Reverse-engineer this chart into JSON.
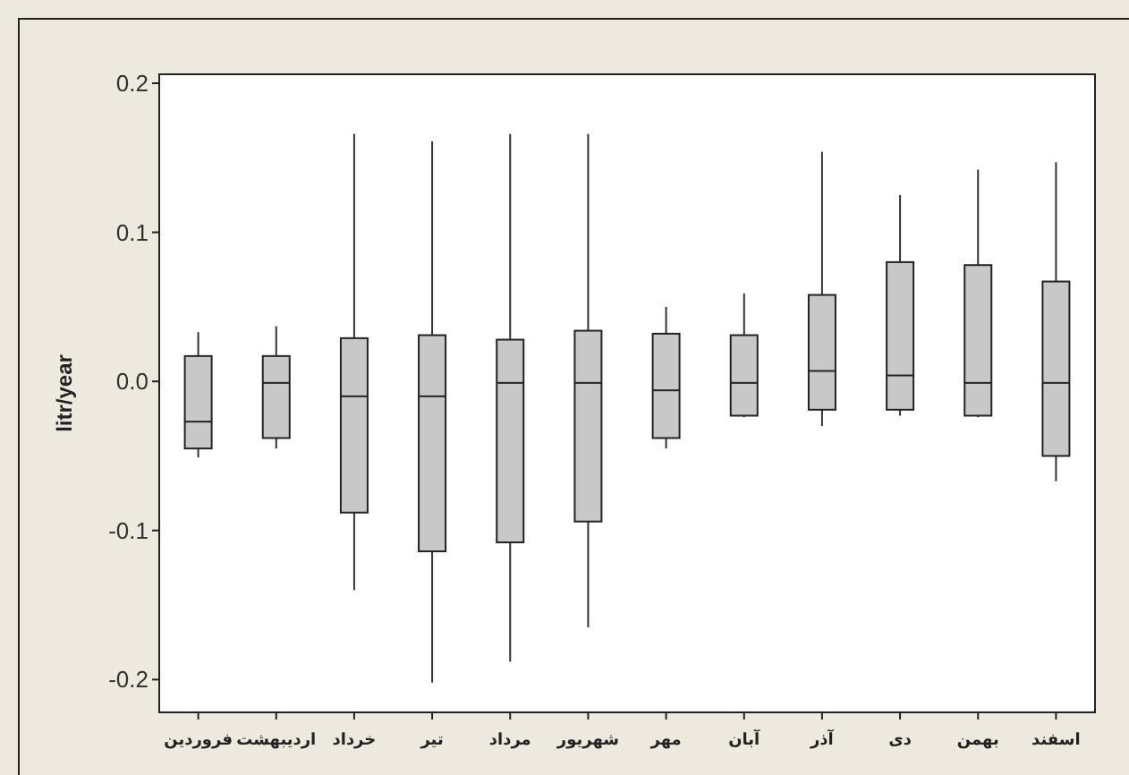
{
  "chart_data": {
    "type": "box",
    "ylabel": "litr/year",
    "categories": [
      "فروردین",
      "اردیبهشت",
      "خرداد",
      "تیر",
      "مرداد",
      "شهریور",
      "مهر",
      "آبان",
      "آذر",
      "دی",
      "بهمن",
      "اسفند"
    ],
    "color": "#c8c8c8",
    "ylim": [
      -0.222,
      0.206
    ],
    "yticks": [
      {
        "value": -0.2,
        "label": "-0.2"
      },
      {
        "value": -0.1,
        "label": "-0.1"
      },
      {
        "value": 0,
        "label": "0.0"
      },
      {
        "value": 0.1,
        "label": "0.1"
      },
      {
        "value": 0.2,
        "label": "0.2"
      }
    ],
    "grid": false,
    "boxes": [
      {
        "low": -0.051,
        "q1": -0.045,
        "median": -0.027,
        "q3": 0.017,
        "high": 0.033
      },
      {
        "low": -0.045,
        "q1": -0.038,
        "median": -0.001,
        "q3": 0.017,
        "high": 0.037
      },
      {
        "low": -0.14,
        "q1": -0.088,
        "median": -0.01,
        "q3": 0.029,
        "high": 0.166
      },
      {
        "low": -0.202,
        "q1": -0.114,
        "median": -0.01,
        "q3": 0.031,
        "high": 0.161
      },
      {
        "low": -0.188,
        "q1": -0.108,
        "median": -0.001,
        "q3": 0.028,
        "high": 0.166
      },
      {
        "low": -0.165,
        "q1": -0.094,
        "median": -0.001,
        "q3": 0.034,
        "high": 0.166
      },
      {
        "low": -0.045,
        "q1": -0.038,
        "median": -0.006,
        "q3": 0.032,
        "high": 0.05
      },
      {
        "low": -0.024,
        "q1": -0.023,
        "median": -0.001,
        "q3": 0.031,
        "high": 0.059
      },
      {
        "low": -0.03,
        "q1": -0.019,
        "median": 0.007,
        "q3": 0.058,
        "high": 0.154
      },
      {
        "low": -0.023,
        "q1": -0.019,
        "median": 0.004,
        "q3": 0.08,
        "high": 0.125
      },
      {
        "low": -0.024,
        "q1": -0.023,
        "median": -0.001,
        "q3": 0.078,
        "high": 0.142
      },
      {
        "low": -0.067,
        "q1": -0.05,
        "median": -0.001,
        "q3": 0.067,
        "high": 0.147
      }
    ]
  }
}
